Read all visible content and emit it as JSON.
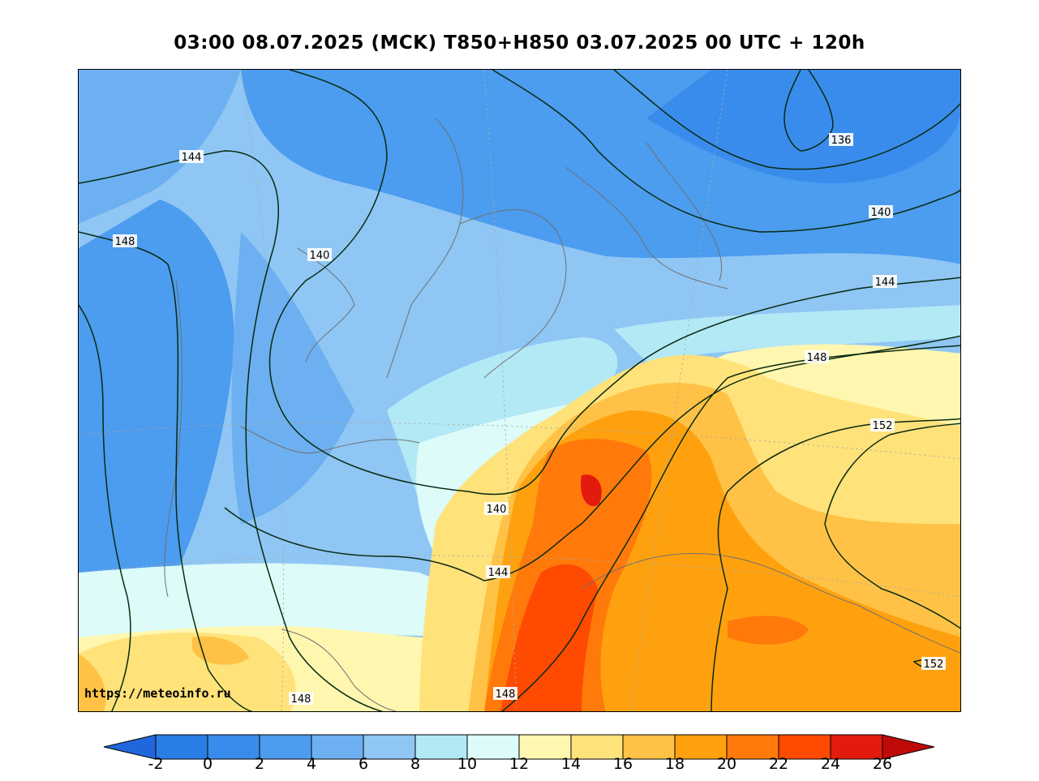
{
  "title": "03:00 08.07.2025 (MCK) T850+H850 03.07.2025 00 UTC + 120h",
  "watermark": "https://meteoinfo.ru",
  "colorbar": {
    "ticks": [
      "-2",
      "0",
      "2",
      "4",
      "6",
      "8",
      "10",
      "12",
      "14",
      "16",
      "18",
      "20",
      "22",
      "24",
      "26"
    ],
    "colors": [
      "#2b7de6",
      "#3a8cec",
      "#4c9cef",
      "#6cb0f1",
      "#8fc6f4",
      "#b3e9f4",
      "#dcfbf9",
      "#fff7b0",
      "#ffe27a",
      "#ffc246",
      "#ffa10e",
      "#ff7a0a",
      "#ff4a02",
      "#e31a0e"
    ],
    "under_color": "#2266dd",
    "over_color": "#c00a0a"
  },
  "contour_labels": {
    "l136": "136",
    "l140a": "140",
    "l140b": "140",
    "l140c": "140",
    "l144a": "144",
    "l144b": "144",
    "l144c": "144",
    "l148a": "148",
    "l148b": "148",
    "l148c": "148",
    "l148d": "148",
    "l152a": "152",
    "l152b": "152"
  }
}
